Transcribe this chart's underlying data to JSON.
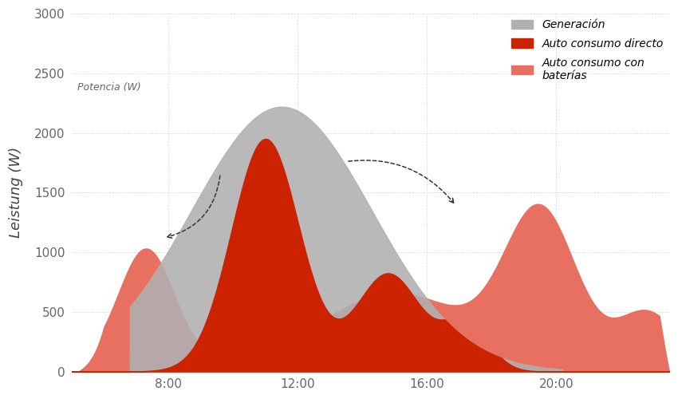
{
  "ylabel_left": "Leistung (W)",
  "ylabel_top": "Potencia (W)",
  "ylim": [
    0,
    3000
  ],
  "xlim": [
    5.0,
    23.5
  ],
  "yticks": [
    0,
    500,
    1000,
    1500,
    2000,
    2500,
    3000
  ],
  "xticks": [
    8,
    12,
    16,
    20
  ],
  "xtick_labels": [
    "8:00",
    "12:00",
    "16:00",
    "20:00"
  ],
  "color_generation": "#b0b0b0",
  "color_direct": "#cc2200",
  "color_battery": "#e87060",
  "legend_labels": [
    "Generación",
    "Auto consumo directo",
    "Auto consumo con\nbaterías"
  ],
  "background_color": "#ffffff",
  "grid_color": "#d0d0d0"
}
